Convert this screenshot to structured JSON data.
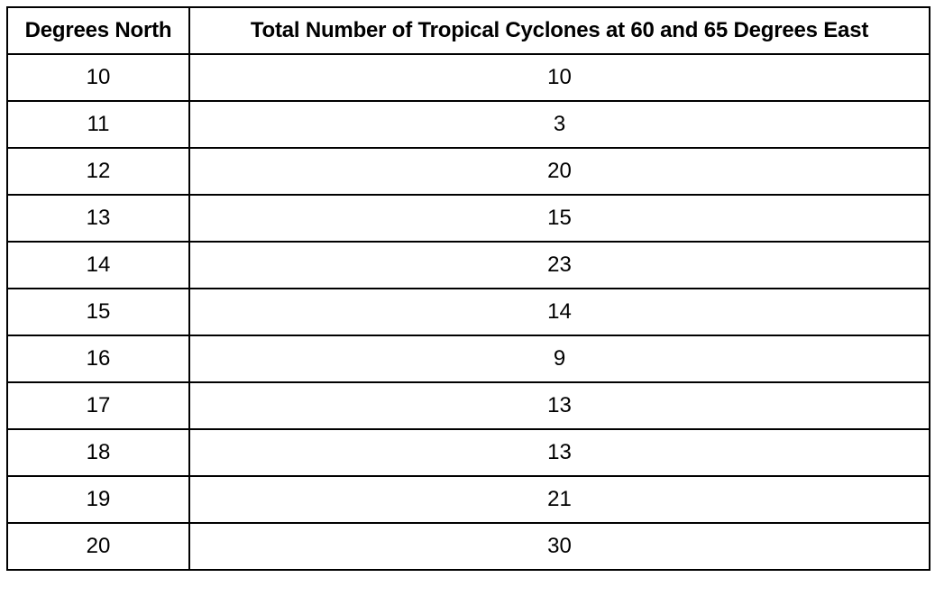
{
  "table": {
    "header": [
      "Degrees North",
      "Total Number of Tropical Cyclones at 60 and 65 Degrees East"
    ],
    "rows": [
      [
        10,
        10
      ],
      [
        11,
        3
      ],
      [
        12,
        20
      ],
      [
        13,
        15
      ],
      [
        14,
        23
      ],
      [
        15,
        14
      ],
      [
        16,
        9
      ],
      [
        17,
        13
      ],
      [
        18,
        13
      ],
      [
        19,
        21
      ],
      [
        20,
        30
      ]
    ]
  }
}
